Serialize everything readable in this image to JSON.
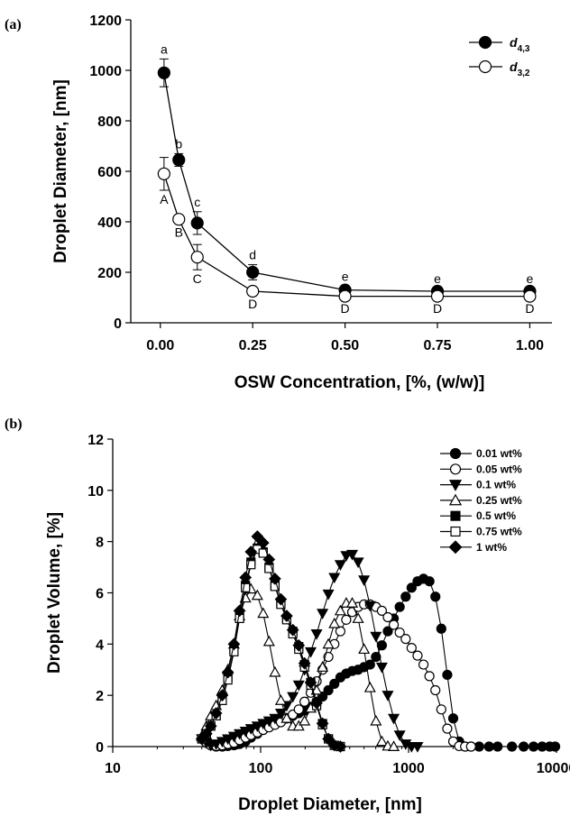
{
  "chart_data": [
    {
      "panel_label": "(a)",
      "type": "line",
      "xlabel": "OSW Concentration, [%, (w/w)]",
      "ylabel": "Droplet Diameter, [nm]",
      "xlim": [
        -0.08,
        1.06
      ],
      "ylim": [
        0,
        1200
      ],
      "xticks": [
        "0.00",
        "0.25",
        "0.50",
        "0.75",
        "1.00"
      ],
      "yticks": [
        "0",
        "200",
        "400",
        "600",
        "800",
        "1000",
        "1200"
      ],
      "legend": "top-right",
      "x": [
        0.01,
        0.05,
        0.1,
        0.25,
        0.5,
        0.75,
        1.0
      ],
      "series": [
        {
          "name": "d4,3",
          "name_main": "d",
          "name_sub": "4,3",
          "marker": "filled-circle",
          "values": [
            990,
            645,
            395,
            200,
            130,
            125,
            125
          ],
          "errors": [
            55,
            25,
            45,
            30,
            15,
            10,
            10
          ],
          "letters": [
            "a",
            "b",
            "c",
            "d",
            "e",
            "e",
            "e"
          ],
          "letter_position": "above"
        },
        {
          "name": "d3,2",
          "name_main": "d",
          "name_sub": "3,2",
          "marker": "open-circle",
          "values": [
            590,
            410,
            260,
            125,
            105,
            105,
            105
          ],
          "errors": [
            65,
            15,
            50,
            15,
            12,
            12,
            12
          ],
          "letters": [
            "A",
            "B",
            "C",
            "D",
            "D",
            "D",
            "D"
          ],
          "letter_position": "below"
        }
      ]
    },
    {
      "panel_label": "(b)",
      "type": "line",
      "xlabel": "Droplet Diameter, [nm]",
      "ylabel": "Droplet Volume, [%]",
      "xscale": "log",
      "xlim": [
        10,
        10000
      ],
      "ylim": [
        0,
        12
      ],
      "xticks": [
        "10",
        "100",
        "1000",
        "10000"
      ],
      "yticks": [
        "0",
        "2",
        "4",
        "6",
        "8",
        "10",
        "12"
      ],
      "legend": "top-right",
      "series": [
        {
          "name": "0.01 wt%",
          "marker": "filled-circle",
          "points": [
            [
              40,
              0.3
            ],
            [
              43,
              0.15
            ],
            [
              46,
              0.05
            ],
            [
              50,
              0
            ],
            [
              55,
              0
            ],
            [
              60,
              0.02
            ],
            [
              66,
              0.05
            ],
            [
              72,
              0.1
            ],
            [
              79,
              0.2
            ],
            [
              86,
              0.35
            ],
            [
              95,
              0.5
            ],
            [
              104,
              0.65
            ],
            [
              114,
              0.8
            ],
            [
              125,
              0.9
            ],
            [
              137,
              1.0
            ],
            [
              150,
              1.1
            ],
            [
              165,
              1.2
            ],
            [
              181,
              1.3
            ],
            [
              198,
              1.4
            ],
            [
              218,
              1.55
            ],
            [
              239,
              1.75
            ],
            [
              262,
              1.95
            ],
            [
              287,
              2.2
            ],
            [
              315,
              2.45
            ],
            [
              346,
              2.7
            ],
            [
              379,
              2.85
            ],
            [
              416,
              2.95
            ],
            [
              456,
              3.0
            ],
            [
              500,
              3.1
            ],
            [
              549,
              3.2
            ],
            [
              602,
              3.5
            ],
            [
              660,
              3.95
            ],
            [
              724,
              4.5
            ],
            [
              794,
              5.0
            ],
            [
              871,
              5.45
            ],
            [
              956,
              5.85
            ],
            [
              1048,
              6.2
            ],
            [
              1150,
              6.45
            ],
            [
              1262,
              6.55
            ],
            [
              1384,
              6.45
            ],
            [
              1518,
              5.85
            ],
            [
              1665,
              4.6
            ],
            [
              1827,
              2.8
            ],
            [
              2004,
              1.1
            ],
            [
              2198,
              0.2
            ],
            [
              2411,
              0
            ],
            [
              2645,
              0
            ],
            [
              3000,
              0
            ],
            [
              3500,
              0
            ],
            [
              4000,
              0
            ],
            [
              5000,
              0
            ],
            [
              6000,
              0
            ],
            [
              7000,
              0
            ],
            [
              8000,
              0
            ],
            [
              9000,
              0
            ],
            [
              9800,
              0
            ]
          ]
        },
        {
          "name": "0.05 wt%",
          "marker": "open-circle",
          "points": [
            [
              40,
              0.3
            ],
            [
              43,
              0.15
            ],
            [
              46,
              0.05
            ],
            [
              50,
              0.02
            ],
            [
              55,
              0.05
            ],
            [
              60,
              0.1
            ],
            [
              66,
              0.15
            ],
            [
              72,
              0.25
            ],
            [
              79,
              0.35
            ],
            [
              86,
              0.45
            ],
            [
              95,
              0.55
            ],
            [
              104,
              0.65
            ],
            [
              114,
              0.75
            ],
            [
              125,
              0.85
            ],
            [
              137,
              0.95
            ],
            [
              150,
              1.1
            ],
            [
              165,
              1.25
            ],
            [
              181,
              1.45
            ],
            [
              198,
              1.75
            ],
            [
              218,
              2.1
            ],
            [
              239,
              2.55
            ],
            [
              262,
              3.0
            ],
            [
              287,
              3.5
            ],
            [
              315,
              4.0
            ],
            [
              346,
              4.5
            ],
            [
              379,
              4.95
            ],
            [
              416,
              5.25
            ],
            [
              456,
              5.45
            ],
            [
              500,
              5.55
            ],
            [
              549,
              5.55
            ],
            [
              602,
              5.45
            ],
            [
              660,
              5.3
            ],
            [
              724,
              5.05
            ],
            [
              794,
              4.75
            ],
            [
              871,
              4.45
            ],
            [
              956,
              4.2
            ],
            [
              1048,
              3.85
            ],
            [
              1150,
              3.55
            ],
            [
              1262,
              3.2
            ],
            [
              1384,
              2.75
            ],
            [
              1518,
              2.2
            ],
            [
              1665,
              1.45
            ],
            [
              1827,
              0.7
            ],
            [
              2004,
              0.2
            ],
            [
              2198,
              0.02
            ],
            [
              2411,
              0
            ],
            [
              2645,
              0
            ]
          ]
        },
        {
          "name": "0.1 wt%",
          "marker": "filled-triangle-down",
          "points": [
            [
              40,
              0.3
            ],
            [
              43,
              0.15
            ],
            [
              46,
              0.05
            ],
            [
              50,
              0.1
            ],
            [
              55,
              0.2
            ],
            [
              60,
              0.3
            ],
            [
              66,
              0.4
            ],
            [
              72,
              0.5
            ],
            [
              79,
              0.6
            ],
            [
              86,
              0.7
            ],
            [
              95,
              0.8
            ],
            [
              104,
              0.9
            ],
            [
              114,
              1.0
            ],
            [
              125,
              1.1
            ],
            [
              137,
              1.3
            ],
            [
              150,
              1.6
            ],
            [
              165,
              1.95
            ],
            [
              181,
              2.4
            ],
            [
              198,
              3.0
            ],
            [
              218,
              3.7
            ],
            [
              239,
              4.4
            ],
            [
              262,
              5.2
            ],
            [
              287,
              5.95
            ],
            [
              315,
              6.6
            ],
            [
              346,
              7.1
            ],
            [
              379,
              7.45
            ],
            [
              416,
              7.5
            ],
            [
              456,
              7.2
            ],
            [
              500,
              6.5
            ],
            [
              549,
              5.5
            ],
            [
              602,
              4.3
            ],
            [
              660,
              3.1
            ],
            [
              724,
              2.0
            ],
            [
              794,
              1.1
            ],
            [
              871,
              0.45
            ],
            [
              956,
              0.1
            ],
            [
              1048,
              0
            ],
            [
              1150,
              0
            ]
          ]
        },
        {
          "name": "0.25 wt%",
          "marker": "open-triangle-up",
          "points": [
            [
              40,
              0.4
            ],
            [
              43,
              0.8
            ],
            [
              46,
              1.2
            ],
            [
              50,
              1.6
            ],
            [
              55,
              2.2
            ],
            [
              60,
              3.0
            ],
            [
              66,
              4.0
            ],
            [
              72,
              5.1
            ],
            [
              79,
              5.8
            ],
            [
              86,
              6.15
            ],
            [
              95,
              5.9
            ],
            [
              104,
              5.2
            ],
            [
              114,
              4.1
            ],
            [
              125,
              2.9
            ],
            [
              137,
              1.8
            ],
            [
              150,
              1.1
            ],
            [
              165,
              0.8
            ],
            [
              181,
              0.8
            ],
            [
              198,
              1.0
            ],
            [
              218,
              1.5
            ],
            [
              239,
              2.2
            ],
            [
              262,
              3.1
            ],
            [
              287,
              4.0
            ],
            [
              315,
              4.8
            ],
            [
              346,
              5.3
            ],
            [
              379,
              5.6
            ],
            [
              416,
              5.6
            ],
            [
              456,
              5.0
            ],
            [
              500,
              3.8
            ],
            [
              549,
              2.3
            ],
            [
              602,
              1.0
            ],
            [
              660,
              0.2
            ],
            [
              724,
              0.02
            ],
            [
              794,
              0
            ]
          ]
        },
        {
          "name": "0.5 wt%",
          "marker": "filled-square",
          "points": [
            [
              40,
              0.3
            ],
            [
              43,
              0.5
            ],
            [
              46,
              0.8
            ],
            [
              50,
              1.2
            ],
            [
              55,
              1.8
            ],
            [
              60,
              2.7
            ],
            [
              66,
              3.8
            ],
            [
              72,
              5.1
            ],
            [
              79,
              6.3
            ],
            [
              86,
              7.2
            ],
            [
              95,
              7.75
            ],
            [
              104,
              7.6
            ],
            [
              114,
              7.0
            ],
            [
              125,
              6.3
            ],
            [
              137,
              5.6
            ],
            [
              150,
              5.0
            ],
            [
              165,
              4.5
            ],
            [
              181,
              3.9
            ],
            [
              198,
              3.2
            ],
            [
              218,
              2.5
            ],
            [
              239,
              1.7
            ],
            [
              262,
              0.9
            ],
            [
              287,
              0.3
            ],
            [
              315,
              0.05
            ],
            [
              346,
              0
            ]
          ]
        },
        {
          "name": "0.75 wt%",
          "marker": "open-square",
          "points": [
            [
              40,
              0.3
            ],
            [
              43,
              0.5
            ],
            [
              46,
              0.8
            ],
            [
              50,
              1.2
            ],
            [
              55,
              1.8
            ],
            [
              60,
              2.6
            ],
            [
              66,
              3.7
            ],
            [
              72,
              5.0
            ],
            [
              79,
              6.2
            ],
            [
              86,
              7.1
            ],
            [
              95,
              7.7
            ],
            [
              104,
              7.55
            ],
            [
              114,
              6.95
            ],
            [
              125,
              6.25
            ],
            [
              137,
              5.55
            ],
            [
              150,
              4.95
            ],
            [
              165,
              4.4
            ],
            [
              181,
              3.8
            ],
            [
              198,
              3.1
            ],
            [
              218,
              2.4
            ],
            [
              239,
              1.6
            ],
            [
              262,
              0.85
            ],
            [
              287,
              0.3
            ],
            [
              315,
              0.05
            ],
            [
              346,
              0
            ]
          ]
        },
        {
          "name": "1 wt%",
          "marker": "filled-diamond",
          "points": [
            [
              40,
              0.3
            ],
            [
              43,
              0.5
            ],
            [
              46,
              0.8
            ],
            [
              50,
              1.3
            ],
            [
              55,
              2.0
            ],
            [
              60,
              2.9
            ],
            [
              66,
              4.0
            ],
            [
              72,
              5.3
            ],
            [
              79,
              6.6
            ],
            [
              86,
              7.6
            ],
            [
              95,
              8.2
            ],
            [
              104,
              7.95
            ],
            [
              114,
              7.3
            ],
            [
              125,
              6.55
            ],
            [
              137,
              5.75
            ],
            [
              150,
              5.1
            ],
            [
              165,
              4.55
            ],
            [
              181,
              3.95
            ],
            [
              198,
              3.25
            ],
            [
              218,
              2.5
            ],
            [
              239,
              1.7
            ],
            [
              262,
              0.9
            ],
            [
              287,
              0.3
            ],
            [
              315,
              0.05
            ],
            [
              346,
              0
            ]
          ]
        }
      ]
    }
  ]
}
